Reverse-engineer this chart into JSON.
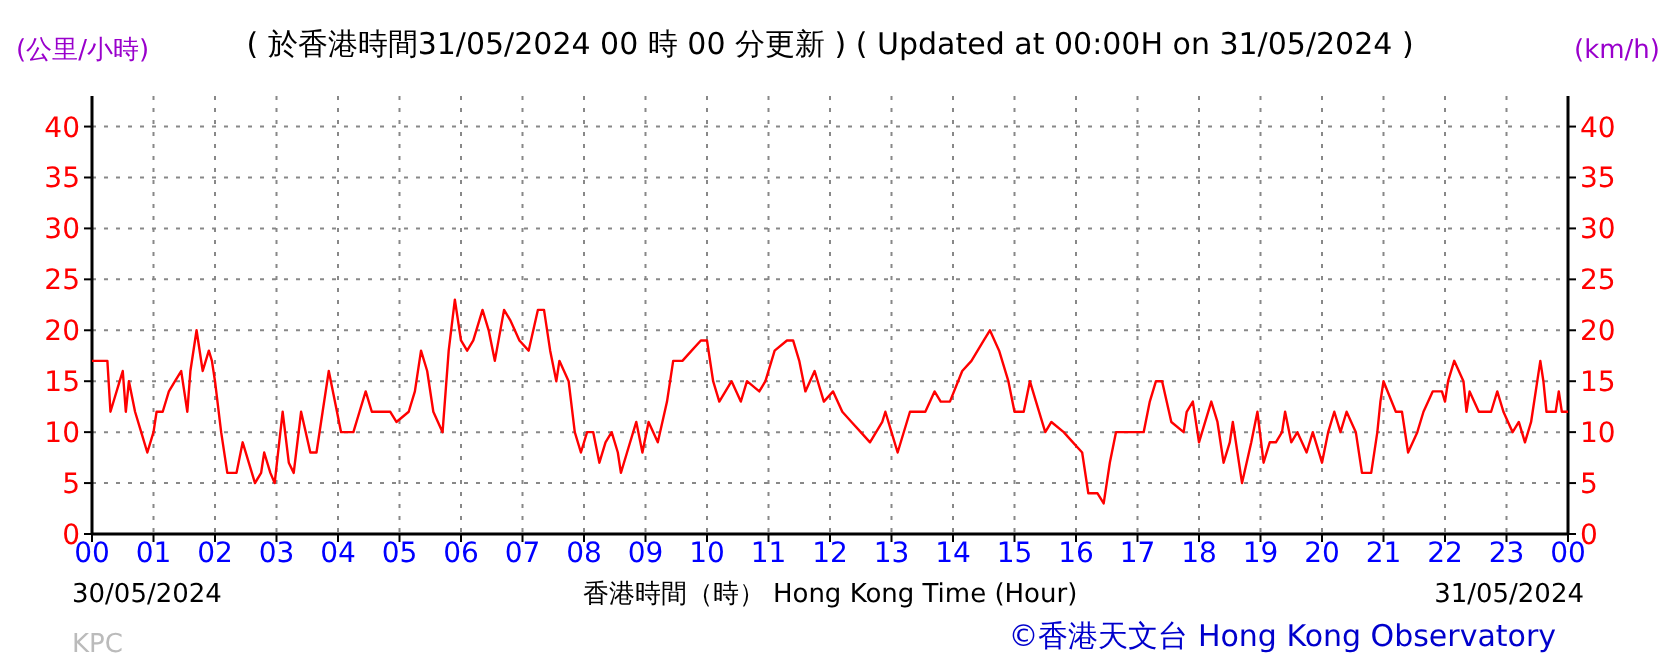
{
  "chart_data": {
    "type": "line",
    "title": "( 於香港時間31/05/2024 00 時 00 分更新 ) ( Updated at 00:00H on 31/05/2024 )",
    "xlabel": "香港時間（時） Hong Kong Time (Hour)",
    "ylabel": "(公里/小時)",
    "y2label": "(km/h)",
    "annotations": [
      "30/05/2024",
      "31/05/2024",
      "KPC",
      "©香港天文台 Hong Kong Observatory"
    ],
    "xlim": [
      0,
      24
    ],
    "xticks": [
      {
        "value": 0,
        "label": "00"
      },
      {
        "value": 1,
        "label": "01"
      },
      {
        "value": 2,
        "label": "02"
      },
      {
        "value": 3,
        "label": "03"
      },
      {
        "value": 4,
        "label": "04"
      },
      {
        "value": 5,
        "label": "05"
      },
      {
        "value": 6,
        "label": "06"
      },
      {
        "value": 7,
        "label": "07"
      },
      {
        "value": 8,
        "label": "08"
      },
      {
        "value": 9,
        "label": "09"
      },
      {
        "value": 10,
        "label": "10"
      },
      {
        "value": 11,
        "label": "11"
      },
      {
        "value": 12,
        "label": "12"
      },
      {
        "value": 13,
        "label": "13"
      },
      {
        "value": 14,
        "label": "14"
      },
      {
        "value": 15,
        "label": "15"
      },
      {
        "value": 16,
        "label": "16"
      },
      {
        "value": 17,
        "label": "17"
      },
      {
        "value": 18,
        "label": "18"
      },
      {
        "value": 19,
        "label": "19"
      },
      {
        "value": 20,
        "label": "20"
      },
      {
        "value": 21,
        "label": "21"
      },
      {
        "value": 22,
        "label": "22"
      },
      {
        "value": 23,
        "label": "23"
      },
      {
        "value": 24,
        "label": "00"
      }
    ],
    "ylim": [
      0,
      43
    ],
    "yticks": [
      0,
      5,
      10,
      15,
      20,
      25,
      30,
      35,
      40
    ],
    "y2lim": [
      0,
      43
    ],
    "y2ticks": [
      0,
      5,
      10,
      15,
      20,
      25,
      30,
      35,
      40
    ],
    "grid": true,
    "series": [
      {
        "color": "#ff0000",
        "x": [
          0,
          0.25,
          0.3,
          0.45,
          0.5,
          0.55,
          0.6,
          0.7,
          0.8,
          0.9,
          1.0,
          1.05,
          1.15,
          1.25,
          1.35,
          1.45,
          1.5,
          1.55,
          1.6,
          1.7,
          1.8,
          1.9,
          1.95,
          2.0,
          2.1,
          2.2,
          2.35,
          2.45,
          2.6,
          2.65,
          2.75,
          2.8,
          2.9,
          2.97,
          3.1,
          3.2,
          3.28,
          3.4,
          3.55,
          3.65,
          3.75,
          3.85,
          3.95,
          4.05,
          4.25,
          4.35,
          4.45,
          4.55,
          4.85,
          4.95,
          5.15,
          5.25,
          5.35,
          5.45,
          5.55,
          5.7,
          5.8,
          5.9,
          6.0,
          6.1,
          6.2,
          6.35,
          6.45,
          6.55,
          6.7,
          6.8,
          6.95,
          7.1,
          7.25,
          7.35,
          7.45,
          7.55,
          7.6,
          7.75,
          7.85,
          7.95,
          8.05,
          8.15,
          8.25,
          8.35,
          8.45,
          8.55,
          8.6,
          8.7,
          8.85,
          8.95,
          9.05,
          9.2,
          9.35,
          9.45,
          9.6,
          9.75,
          9.9,
          10.0,
          10.1,
          10.2,
          10.4,
          10.55,
          10.65,
          10.85,
          10.95,
          11.1,
          11.3,
          11.4,
          11.5,
          11.6,
          11.75,
          11.9,
          12.05,
          12.2,
          12.35,
          12.5,
          12.65,
          12.85,
          12.9,
          13.0,
          13.1,
          13.3,
          13.55,
          13.7,
          13.8,
          13.95,
          14.15,
          14.3,
          14.5,
          14.6,
          14.75,
          14.9,
          15.0,
          15.15,
          15.25,
          15.35,
          15.5,
          15.6,
          15.8,
          15.95,
          16.1,
          16.2,
          16.35,
          16.45,
          16.55,
          16.65,
          16.8,
          17.1,
          17.2,
          17.3,
          17.4,
          17.55,
          17.75,
          17.8,
          17.9,
          18.0,
          18.1,
          18.2,
          18.3,
          18.4,
          18.5,
          18.55,
          18.65,
          18.7,
          18.85,
          18.95,
          19.05,
          19.15,
          19.25,
          19.35,
          19.4,
          19.5,
          19.6,
          19.75,
          19.85,
          20.0,
          20.1,
          20.2,
          20.3,
          20.4,
          20.55,
          20.65,
          20.8,
          20.9,
          20.95,
          21.0,
          21.2,
          21.3,
          21.4,
          21.55,
          21.65,
          21.8,
          21.95,
          22.0,
          22.05,
          22.15,
          22.3,
          22.35,
          22.4,
          22.55,
          22.75,
          22.85,
          22.95,
          23.1,
          23.2,
          23.3,
          23.4,
          23.55,
          23.6,
          23.65,
          23.8,
          23.85,
          23.9,
          24.0
        ],
        "values": [
          17,
          17,
          12,
          15,
          16,
          12,
          15,
          12,
          10,
          8,
          10,
          12,
          12,
          14,
          15,
          16,
          14,
          12,
          16,
          20,
          16,
          18,
          17,
          15,
          10,
          6,
          6,
          9,
          6,
          5,
          6,
          8,
          6,
          5,
          12,
          7,
          6,
          12,
          8,
          8,
          12,
          16,
          13,
          10,
          10,
          12,
          14,
          12,
          12,
          11,
          12,
          14,
          18,
          16,
          12,
          10,
          18,
          23,
          19,
          18,
          19,
          22,
          20,
          17,
          22,
          21,
          19,
          18,
          22,
          22,
          18,
          15,
          17,
          15,
          10,
          8,
          10,
          10,
          7,
          9,
          10,
          8,
          6,
          8,
          11,
          8,
          11,
          9,
          13,
          17,
          17,
          18,
          19,
          19,
          15,
          13,
          15,
          13,
          15,
          14,
          15,
          18,
          19,
          19,
          17,
          14,
          16,
          13,
          14,
          12,
          11,
          10,
          9,
          11,
          12,
          10,
          8,
          12,
          12,
          14,
          13,
          13,
          16,
          17,
          19,
          20,
          18,
          15,
          12,
          12,
          15,
          13,
          10,
          11,
          10,
          9,
          8,
          4,
          4,
          3,
          7,
          10,
          10,
          10,
          13,
          15,
          15,
          11,
          10,
          12,
          13,
          9,
          11,
          13,
          11,
          7,
          9,
          11,
          7,
          5,
          9,
          12,
          7,
          9,
          9,
          10,
          12,
          9,
          10,
          8,
          10,
          7,
          10,
          12,
          10,
          12,
          10,
          6,
          6,
          10,
          13,
          15,
          12,
          12,
          8,
          10,
          12,
          14,
          14,
          13,
          15,
          17,
          15,
          12,
          14,
          12,
          12,
          14,
          12,
          10,
          11,
          9,
          11,
          17,
          15,
          12,
          12,
          14,
          12,
          12
        ]
      }
    ]
  }
}
